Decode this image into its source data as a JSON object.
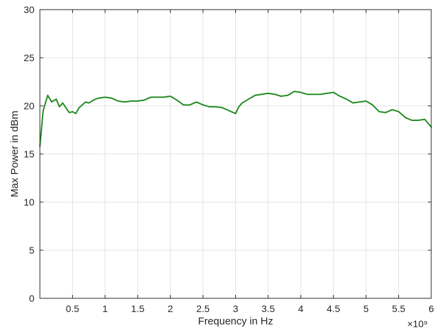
{
  "chart_data": {
    "type": "line",
    "title": "",
    "xlabel": "Frequency in Hz",
    "ylabel": "Max Power in dBm",
    "x_exponent_label": "×10⁹",
    "x_scale": 1000000000.0,
    "xlim": [
      0.0,
      6.0
    ],
    "ylim": [
      0,
      30
    ],
    "x_ticks": [
      0.5,
      1,
      1.5,
      2,
      2.5,
      3,
      3.5,
      4,
      4.5,
      5,
      5.5,
      6
    ],
    "x_tick_labels": [
      "0.5",
      "1",
      "1.5",
      "2",
      "2.5",
      "3",
      "3.5",
      "4",
      "4.5",
      "5",
      "5.5",
      "6"
    ],
    "y_ticks": [
      0,
      5,
      10,
      15,
      20,
      25,
      30
    ],
    "y_tick_labels": [
      "0",
      "5",
      "10",
      "15",
      "20",
      "25",
      "30"
    ],
    "grid": true,
    "legend": "none",
    "series": [
      {
        "color": "#228b22",
        "x": [
          0.0,
          0.05,
          0.12,
          0.18,
          0.25,
          0.3,
          0.35,
          0.4,
          0.45,
          0.5,
          0.55,
          0.6,
          0.65,
          0.7,
          0.75,
          0.8,
          0.85,
          0.9,
          1.0,
          1.1,
          1.2,
          1.3,
          1.4,
          1.5,
          1.6,
          1.7,
          1.8,
          1.9,
          2.0,
          2.1,
          2.2,
          2.3,
          2.4,
          2.5,
          2.6,
          2.7,
          2.8,
          2.9,
          3.0,
          3.05,
          3.1,
          3.2,
          3.3,
          3.4,
          3.5,
          3.6,
          3.7,
          3.8,
          3.9,
          4.0,
          4.1,
          4.2,
          4.3,
          4.4,
          4.5,
          4.6,
          4.7,
          4.8,
          4.9,
          5.0,
          5.1,
          5.2,
          5.3,
          5.4,
          5.5,
          5.6,
          5.7,
          5.8,
          5.9,
          6.0
        ],
        "y": [
          15.8,
          19.5,
          21.1,
          20.4,
          20.7,
          19.9,
          20.3,
          19.8,
          19.3,
          19.4,
          19.2,
          19.8,
          20.1,
          20.4,
          20.3,
          20.5,
          20.7,
          20.8,
          20.9,
          20.8,
          20.5,
          20.4,
          20.5,
          20.5,
          20.6,
          20.9,
          20.9,
          20.9,
          21.0,
          20.6,
          20.1,
          20.1,
          20.4,
          20.1,
          19.9,
          19.9,
          19.8,
          19.5,
          19.2,
          19.9,
          20.3,
          20.7,
          21.1,
          21.2,
          21.3,
          21.2,
          21.0,
          21.1,
          21.5,
          21.4,
          21.2,
          21.2,
          21.2,
          21.3,
          21.4,
          21.0,
          20.7,
          20.3,
          20.4,
          20.5,
          20.1,
          19.4,
          19.3,
          19.6,
          19.4,
          18.8,
          18.5,
          18.5,
          18.6,
          17.8
        ]
      }
    ]
  }
}
